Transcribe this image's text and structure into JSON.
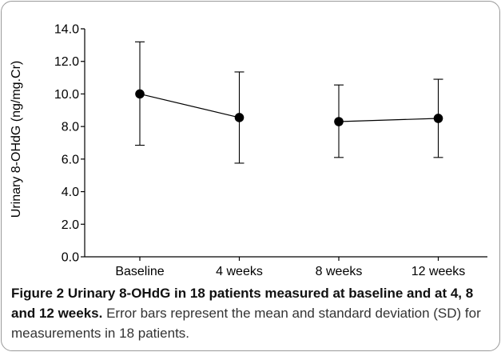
{
  "chart_data": {
    "type": "scatter",
    "categories": [
      "Baseline",
      "4 weeks",
      "8 weeks",
      "12 weeks"
    ],
    "series": [
      {
        "values": [
          10.0,
          8.55,
          8.3,
          8.5
        ],
        "sd_lower": [
          6.85,
          5.75,
          6.1,
          6.1
        ],
        "sd_upper": [
          13.2,
          11.35,
          10.55,
          10.9
        ]
      }
    ],
    "connected_segments": [
      [
        0,
        1
      ],
      [
        2,
        3
      ]
    ],
    "ylabel": "Urinary 8-OHdG (ng/mg.Cr)",
    "xlabel": "",
    "ylim": [
      0,
      14
    ],
    "yticks": [
      "0.0",
      "2.0",
      "4.0",
      "6.0",
      "8.0",
      "10.0",
      "12.0",
      "14.0"
    ],
    "grid": false
  },
  "caption": {
    "title": "Figure 2 Urinary 8-OHdG in 18 patients measured at baseline and at 4, 8 and 12 weeks.",
    "note": "Error bars represent the mean and standard deviation (SD) for measurements in 18 patients."
  },
  "colors": {
    "marks": "#000000",
    "border": "#9a9a9a"
  }
}
